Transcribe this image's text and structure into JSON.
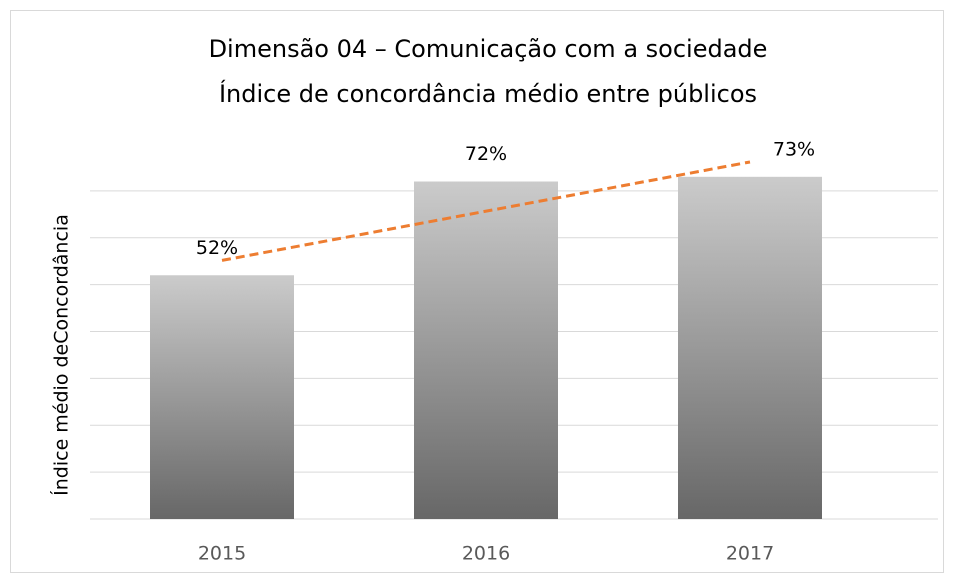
{
  "chart_data": {
    "type": "bar",
    "title": "Dimensão 04 – Comunicação com a sociedade",
    "subtitle": "Índice de concordância médio entre públicos",
    "y_label": "Índice médio deConcordância",
    "categories": [
      "2015",
      "2016",
      "2017"
    ],
    "values": [
      52,
      72,
      73
    ],
    "value_labels": [
      "52%",
      "72%",
      "73%"
    ],
    "color": "#9a9a9a",
    "trendline": {
      "type": "linear",
      "color": "#ed7d31"
    },
    "ylim": [
      0,
      80
    ],
    "yticks": [
      0,
      10,
      20,
      30,
      40,
      50,
      60,
      70
    ],
    "grid": true
  }
}
